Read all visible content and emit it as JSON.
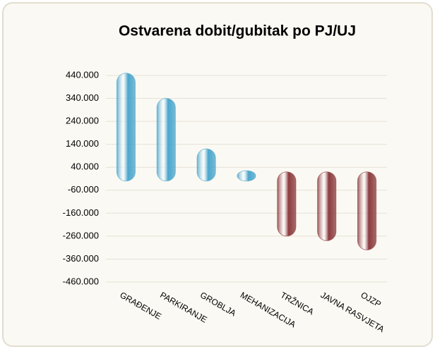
{
  "chart_data": {
    "type": "bar",
    "title": "Ostvarena dobit/gubitak po PJ/UJ",
    "categories": [
      "GRAĐENJE",
      "PARKIRANJE",
      "GROBLJA",
      "MEHANIZACIJA",
      "TRŽNICA",
      "JAVNA RASVJETA",
      "OJZP"
    ],
    "values": [
      430000,
      320000,
      100000,
      5000,
      -240000,
      -260000,
      -300000
    ],
    "color": "#4ba6cc",
    "negative_color": "#8c3b3e",
    "ylim": [
      -460000,
      440000
    ],
    "yticks": [
      {
        "value": 440000,
        "label": "440.000"
      },
      {
        "value": 340000,
        "label": "340.000"
      },
      {
        "value": 240000,
        "label": "240.000"
      },
      {
        "value": 140000,
        "label": "140.000"
      },
      {
        "value": 40000,
        "label": "40.000"
      },
      {
        "value": -60000,
        "label": "-60.000"
      },
      {
        "value": -160000,
        "label": "-160.000"
      },
      {
        "value": -260000,
        "label": "-260.000"
      },
      {
        "value": -360000,
        "label": "-360.000"
      },
      {
        "value": -460000,
        "label": "-460.000"
      }
    ],
    "grid": true
  }
}
